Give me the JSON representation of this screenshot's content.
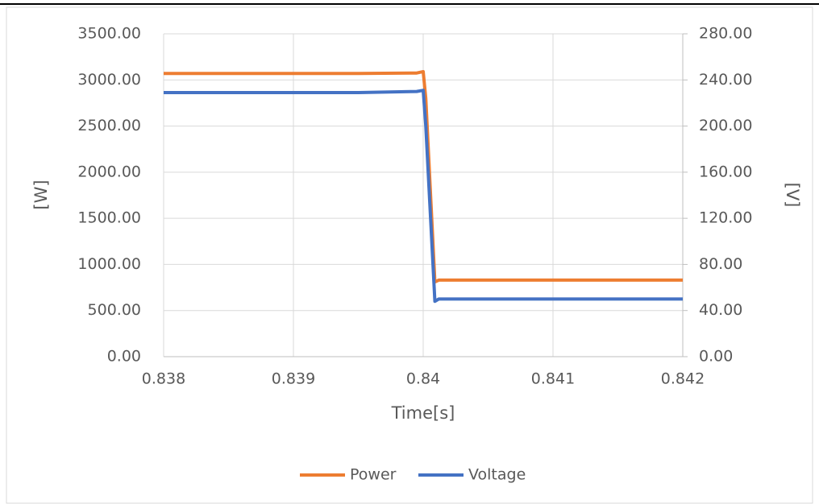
{
  "chart_data": {
    "type": "line",
    "x_label": "Time[s]",
    "y_label": "[W]",
    "y2_label": "[V]",
    "x": [
      0.838,
      0.8395,
      0.83995,
      0.84,
      0.84002,
      0.84009,
      0.84012,
      0.842
    ],
    "series": [
      {
        "name": "Power",
        "color": "#ed7d31",
        "values": [
          3070,
          3070,
          3075,
          3090,
          2800,
          810,
          830,
          830
        ]
      },
      {
        "name": "Voltage",
        "color": "#4472c4",
        "axis": "y2",
        "values": [
          229,
          229,
          230,
          231,
          200,
          48,
          50,
          50
        ]
      }
    ],
    "xlim": [
      0.838,
      0.842
    ],
    "xticks": [
      0.838,
      0.839,
      0.84,
      0.841,
      0.842
    ],
    "ylim": [
      0,
      3500
    ],
    "yticks": [
      {
        "value": 0,
        "label": "0.00"
      },
      {
        "value": 500,
        "label": "500.00"
      },
      {
        "value": 1000,
        "label": "1000.00"
      },
      {
        "value": 1500,
        "label": "1500.00"
      },
      {
        "value": 2000,
        "label": "2000.00"
      },
      {
        "value": 2500,
        "label": "2500.00"
      },
      {
        "value": 3000,
        "label": "3000.00"
      },
      {
        "value": 3500,
        "label": "3500.00"
      }
    ],
    "y2lim": [
      0,
      280
    ],
    "y2ticks": [
      {
        "value": 0,
        "label": "0.00"
      },
      {
        "value": 40,
        "label": "40.00"
      },
      {
        "value": 80,
        "label": "80.00"
      },
      {
        "value": 120,
        "label": "120.00"
      },
      {
        "value": 160,
        "label": "160.00"
      },
      {
        "value": 200,
        "label": "200.00"
      },
      {
        "value": 240,
        "label": "240.00"
      },
      {
        "value": 280,
        "label": "280.00"
      }
    ],
    "grid": true,
    "legend": "bottom"
  }
}
